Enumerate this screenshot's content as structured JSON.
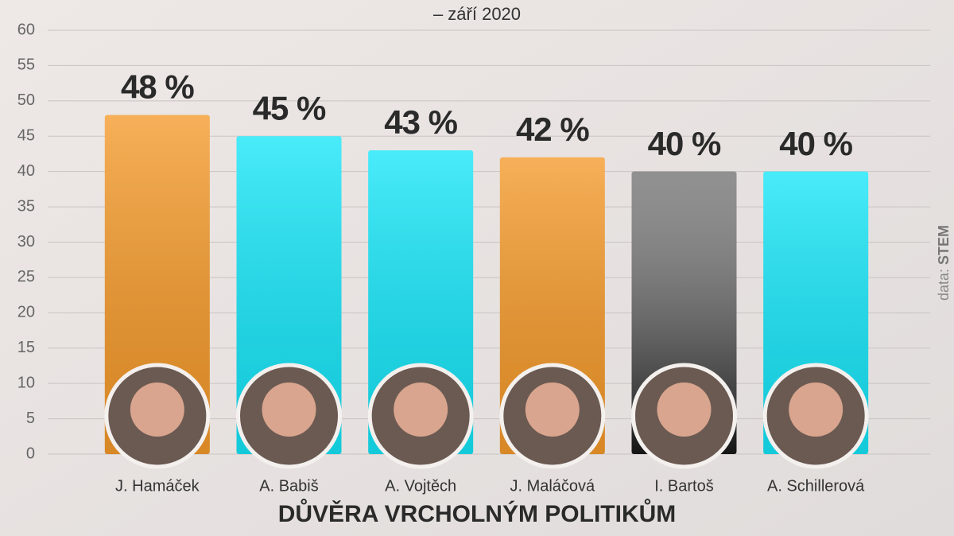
{
  "chart_data": {
    "type": "bar",
    "title": "DŮVĚRA VRCHOLNÝM POLITIKŮM",
    "subtitle": "– září 2020",
    "source_label": "data:",
    "source": "STEM",
    "categories": [
      "J. Hamáček",
      "A. Babiš",
      "A. Vojtěch",
      "J. Maláčová",
      "I. Bartoš",
      "A. Schillerová"
    ],
    "values": [
      48,
      45,
      43,
      42,
      40,
      40
    ],
    "value_labels": [
      "48 %",
      "45 %",
      "43 %",
      "42 %",
      "40 %",
      "40 %"
    ],
    "colors": [
      "#f59a2a",
      "#16e6f8",
      "#16e6f8",
      "#f59a2a",
      "#555555",
      "#16e6f8"
    ],
    "ylim": [
      0,
      60
    ],
    "yticks": [
      0,
      5,
      10,
      15,
      20,
      25,
      30,
      35,
      40,
      45,
      50,
      55,
      60
    ],
    "grid": true
  }
}
